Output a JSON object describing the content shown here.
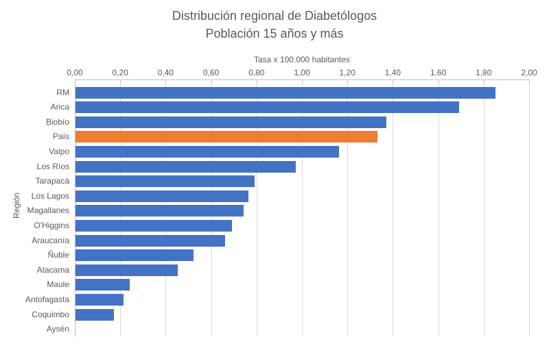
{
  "chart_data": {
    "type": "bar",
    "orientation": "horizontal",
    "title": "Distribución regional de Diabetólogos",
    "subtitle": "Población 15 años y más",
    "xlabel": "Tasa x 100.000 habitantes",
    "ylabel": "Región",
    "xlim": [
      0.0,
      2.0
    ],
    "grid": true,
    "legend": "none",
    "x_ticks": [
      {
        "label": "0,00",
        "value": 0.0
      },
      {
        "label": "0,20",
        "value": 0.2
      },
      {
        "label": "0,40",
        "value": 0.4
      },
      {
        "label": "0,60",
        "value": 0.6
      },
      {
        "label": "0,80",
        "value": 0.8
      },
      {
        "label": "1,00",
        "value": 1.0
      },
      {
        "label": "1,20",
        "value": 1.2
      },
      {
        "label": "1,40",
        "value": 1.4
      },
      {
        "label": "1,60",
        "value": 1.6
      },
      {
        "label": "1,80",
        "value": 1.8
      },
      {
        "label": "2,00",
        "value": 2.0
      }
    ],
    "categories": [
      "RM",
      "Arica",
      "Biobío",
      "País",
      "Valpo",
      "Los Ríos",
      "Tarapacá",
      "Los Lagos",
      "Magallanes",
      "O'Higgins",
      "Araucanía",
      "Ñuble",
      "Atacama",
      "Maule",
      "Antofagasta",
      "Coquimbo",
      "Aysén"
    ],
    "values": [
      1.85,
      1.69,
      1.37,
      1.33,
      1.16,
      0.97,
      0.79,
      0.76,
      0.74,
      0.69,
      0.66,
      0.52,
      0.45,
      0.24,
      0.21,
      0.17,
      0.0
    ],
    "highlight_category": "País",
    "colors": {
      "bar": "#4472c4",
      "highlight": "#ed7d31",
      "gridline": "#d9d9d9",
      "axis_line": "#bfbfbf",
      "text": "#595959"
    }
  }
}
